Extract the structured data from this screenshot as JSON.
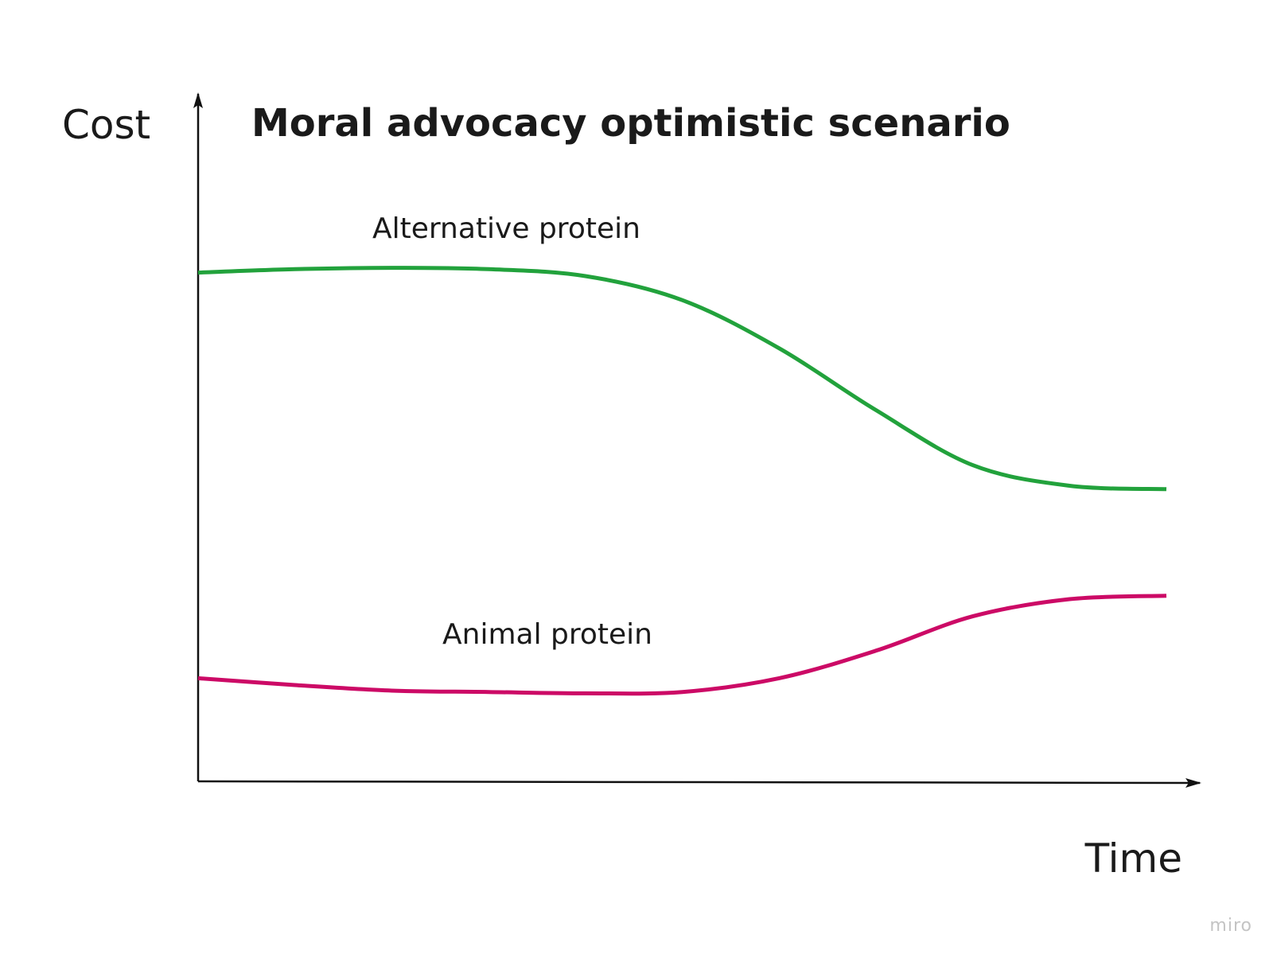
{
  "chart_data": {
    "type": "line",
    "title": "Moral advocacy optimistic scenario",
    "xlabel": "Time",
    "ylabel": "Cost",
    "x_ticks": "none",
    "y_ticks": "none",
    "grid": false,
    "legend": "none",
    "series_labels_inline": true,
    "x": [
      0,
      0.1,
      0.2,
      0.3,
      0.4,
      0.5,
      0.6,
      0.7,
      0.8,
      0.9,
      1.0
    ],
    "xlim": [
      0,
      1
    ],
    "ylim": [
      0,
      1
    ],
    "series": [
      {
        "name": "Alternative protein",
        "color": "#22a23c",
        "values": [
          0.74,
          0.745,
          0.747,
          0.745,
          0.735,
          0.7,
          0.63,
          0.54,
          0.46,
          0.43,
          0.425
        ]
      },
      {
        "name": "Animal protein",
        "color": "#cc0a66",
        "values": [
          0.15,
          0.14,
          0.132,
          0.13,
          0.128,
          0.13,
          0.15,
          0.19,
          0.24,
          0.265,
          0.27
        ]
      }
    ]
  },
  "watermark": "miro",
  "colors": {
    "axis": "#111111",
    "text": "#1a1a1a",
    "watermark": "#c4c4c4"
  }
}
